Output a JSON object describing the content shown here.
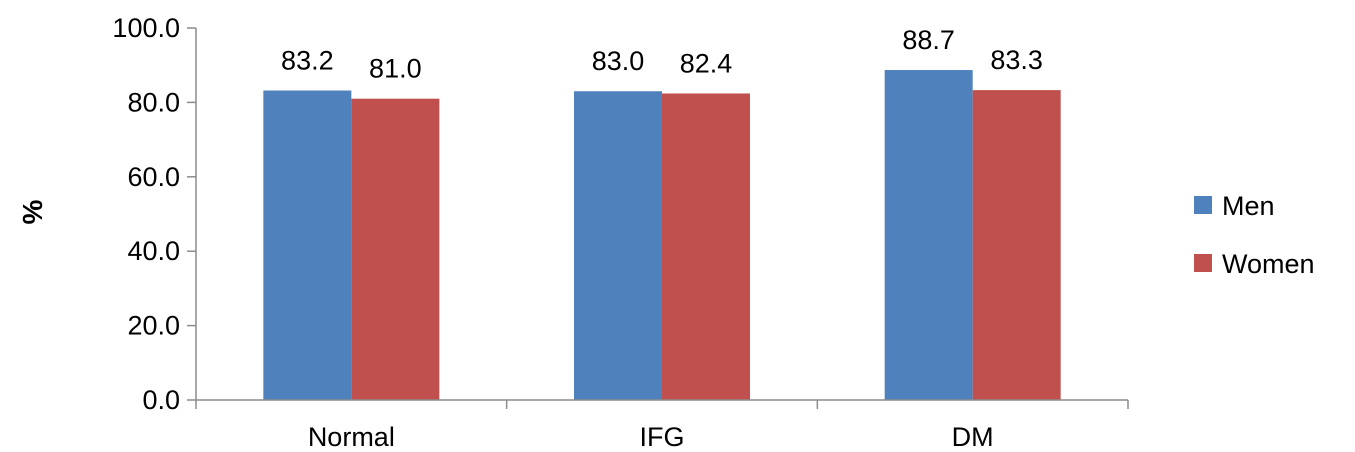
{
  "chart_data": {
    "type": "bar",
    "title": "",
    "xlabel": "",
    "ylabel": "%",
    "ylim": [
      0,
      100
    ],
    "yticks": [
      "0.0",
      "20.0",
      "40.0",
      "60.0",
      "80.0",
      "100.0"
    ],
    "categories": [
      "Normal",
      "IFG",
      "DM"
    ],
    "series": [
      {
        "name": "Men",
        "color": "#4f81bd",
        "values": [
          83.2,
          83.0,
          88.7
        ],
        "labels": [
          "83.2",
          "83.0",
          "88.7"
        ]
      },
      {
        "name": "Women",
        "color": "#c0504d",
        "values": [
          81.0,
          82.4,
          83.3
        ],
        "labels": [
          "81.0",
          "82.4",
          "83.3"
        ]
      }
    ],
    "grid": false,
    "legend_position": "right"
  }
}
